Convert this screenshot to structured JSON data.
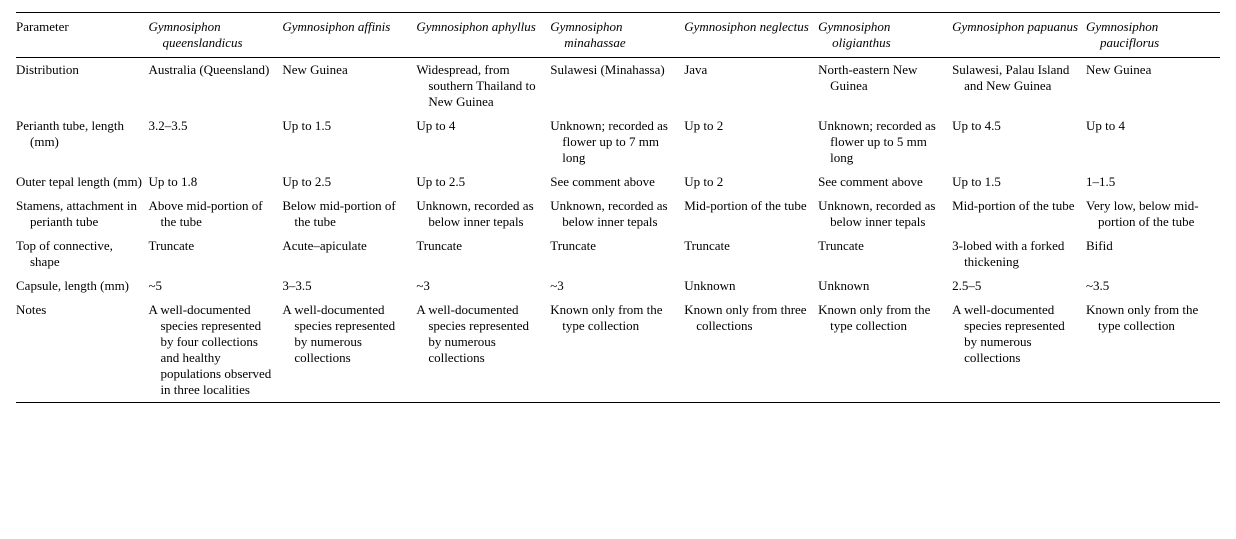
{
  "table": {
    "header_param_label": "Parameter",
    "species": [
      {
        "genus": "Gymnosiphon",
        "epithet": "queenslandicus"
      },
      {
        "genus": "Gymnosiphon",
        "epithet": "affinis"
      },
      {
        "genus": "Gymnosiphon",
        "epithet": "aphyllus"
      },
      {
        "genus": "Gymnosiphon",
        "epithet": "minahassae"
      },
      {
        "genus": "Gymnosiphon",
        "epithet": "neglectus"
      },
      {
        "genus": "Gymnosiphon",
        "epithet": "oligianthus"
      },
      {
        "genus": "Gymnosiphon",
        "epithet": "papuanus"
      },
      {
        "genus": "Gymnosiphon",
        "epithet": "pauciflorus"
      }
    ],
    "rows": [
      {
        "param": "Distribution",
        "cells": [
          "Australia (Queensland)",
          "New Guinea",
          "Widespread, from southern Thailand to New Guinea",
          "Sulawesi (Minahassa)",
          "Java",
          "North-eastern New Guinea",
          "Sulawesi, Palau Island and New Guinea",
          "New Guinea"
        ]
      },
      {
        "param": "Perianth tube, length (mm)",
        "cells": [
          "3.2–3.5",
          "Up to 1.5",
          "Up to 4",
          "Unknown; recorded as flower up to 7 mm long",
          "Up to 2",
          "Unknown; recorded as flower up to 5 mm long",
          "Up to 4.5",
          "Up to 4"
        ]
      },
      {
        "param": "Outer tepal length (mm)",
        "cells": [
          "Up to 1.8",
          "Up to 2.5",
          "Up to 2.5",
          "See comment above",
          "Up to 2",
          "See comment above",
          "Up to 1.5",
          "1–1.5"
        ]
      },
      {
        "param": "Stamens, attachment in perianth tube",
        "cells": [
          "Above mid-portion of the tube",
          "Below mid-portion of the tube",
          "Unknown, recorded as below inner tepals",
          "Unknown, recorded as below inner tepals",
          "Mid-portion of the tube",
          "Unknown, recorded as below inner tepals",
          "Mid-portion of the tube",
          "Very low, below mid-portion of the tube"
        ]
      },
      {
        "param": "Top of connective, shape",
        "cells": [
          "Truncate",
          "Acute–apiculate",
          "Truncate",
          "Truncate",
          "Truncate",
          "Truncate",
          "3-lobed with a forked thickening",
          "Bifid"
        ]
      },
      {
        "param": "Capsule, length (mm)",
        "cells": [
          "~5",
          "3–3.5",
          "~3",
          "~3",
          "Unknown",
          "Unknown",
          "2.5–5",
          "~3.5"
        ]
      },
      {
        "param": "Notes",
        "cells": [
          "A well-documented species represented by four collections and healthy populations observed in three localities",
          "A well-documented species represented by numerous collections",
          "A well-documented species represented by numerous collections",
          "Known only from the type collection",
          "Known only from three collections",
          "Known only from the type collection",
          "A well-documented species represented by numerous collections",
          "Known only from the type collection"
        ]
      }
    ]
  },
  "style": {
    "font_family": "Times New Roman",
    "font_size_pt": 10,
    "text_color": "#000000",
    "background_color": "#ffffff",
    "rule_color": "#000000"
  }
}
